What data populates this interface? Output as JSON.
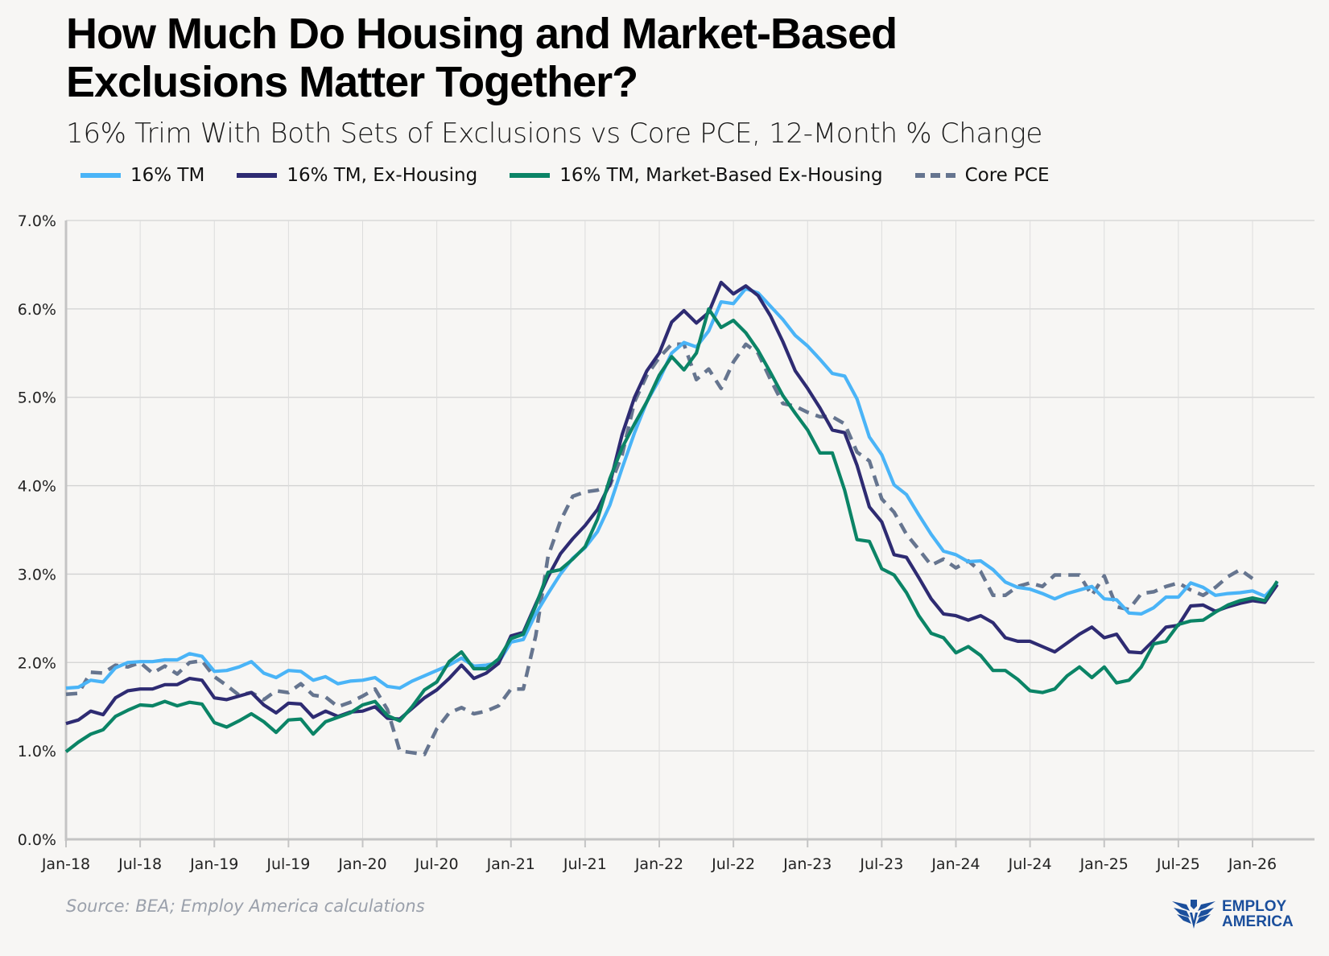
{
  "header": {
    "title_line1": "How Much Do Housing and Market-Based",
    "title_line2": "Exclusions Matter Together?",
    "subtitle": "16% Trim With Both Sets of Exclusions vs Core PCE, 12-Month % Change"
  },
  "footer": {
    "source": "Source: BEA; Employ America calculations",
    "logo_line1": "EMPLOY",
    "logo_line2": "AMERICA",
    "logo_color": "#1b4f9c"
  },
  "chart_data": {
    "type": "line",
    "title": "How Much Do Housing and Market-Based Exclusions Matter Together?",
    "subtitle": "16% Trim With Both Sets of Exclusions vs Core PCE, 12-Month % Change",
    "xlabel": "",
    "ylabel": "",
    "x_start": "2018-01",
    "x_frequency": "monthly",
    "x_ticks": [
      "Jan-18",
      "Jul-18",
      "Jan-19",
      "Jul-19",
      "Jan-20",
      "Jul-20",
      "Jan-21",
      "Jul-21",
      "Jan-22",
      "Jul-22",
      "Jan-23",
      "Jul-23",
      "Jan-24",
      "Jul-24",
      "Jan-25",
      "Jul-25",
      "Jan-26"
    ],
    "x_range_months": [
      0,
      101
    ],
    "y_ticks": [
      "0.0%",
      "1.0%",
      "2.0%",
      "3.0%",
      "4.0%",
      "5.0%",
      "6.0%",
      "7.0%"
    ],
    "ylim": [
      0,
      7
    ],
    "grid": true,
    "legend_position": "top",
    "series": [
      {
        "name": "16% TM",
        "color": "#4ab4f7",
        "dashed": false,
        "values": [
          1.71,
          1.72,
          1.8,
          1.78,
          1.94,
          2.0,
          2.01,
          2.01,
          2.03,
          2.03,
          2.1,
          2.07,
          1.9,
          1.91,
          1.95,
          2.01,
          1.88,
          1.83,
          1.91,
          1.9,
          1.8,
          1.84,
          1.76,
          1.79,
          1.8,
          1.83,
          1.73,
          1.71,
          1.79,
          1.85,
          1.91,
          1.97,
          2.05,
          1.96,
          1.97,
          2.0,
          2.23,
          2.26,
          2.55,
          2.78,
          3.0,
          3.18,
          3.3,
          3.48,
          3.78,
          4.2,
          4.6,
          4.95,
          5.2,
          5.5,
          5.62,
          5.57,
          5.75,
          6.08,
          6.06,
          6.23,
          6.18,
          6.03,
          5.88,
          5.7,
          5.58,
          5.43,
          5.27,
          5.24,
          4.98,
          4.55,
          4.35,
          4.01,
          3.9,
          3.67,
          3.45,
          3.26,
          3.22,
          3.14,
          3.15,
          3.05,
          2.91,
          2.85,
          2.83,
          2.78,
          2.72,
          2.78,
          2.82,
          2.86,
          2.72,
          2.71,
          2.56,
          2.55,
          2.62,
          2.74,
          2.74,
          2.9,
          2.85,
          2.76,
          2.78,
          2.79,
          2.81,
          2.75,
          2.9
        ]
      },
      {
        "name": "16% TM, Ex-Housing",
        "color": "#2e2b72",
        "dashed": false,
        "values": [
          1.31,
          1.35,
          1.45,
          1.41,
          1.6,
          1.68,
          1.7,
          1.7,
          1.75,
          1.75,
          1.82,
          1.8,
          1.6,
          1.58,
          1.62,
          1.66,
          1.52,
          1.43,
          1.54,
          1.53,
          1.38,
          1.45,
          1.39,
          1.44,
          1.45,
          1.5,
          1.37,
          1.36,
          1.48,
          1.6,
          1.69,
          1.82,
          1.97,
          1.82,
          1.88,
          1.99,
          2.3,
          2.34,
          2.66,
          2.97,
          3.23,
          3.4,
          3.55,
          3.73,
          4.02,
          4.58,
          5.0,
          5.3,
          5.5,
          5.85,
          5.98,
          5.84,
          5.96,
          6.3,
          6.17,
          6.26,
          6.15,
          5.92,
          5.63,
          5.3,
          5.1,
          4.88,
          4.63,
          4.6,
          4.23,
          3.76,
          3.59,
          3.22,
          3.19,
          2.96,
          2.72,
          2.55,
          2.53,
          2.48,
          2.53,
          2.45,
          2.28,
          2.24,
          2.24,
          2.18,
          2.12,
          2.22,
          2.32,
          2.4,
          2.28,
          2.32,
          2.12,
          2.11,
          2.25,
          2.4,
          2.42,
          2.64,
          2.65,
          2.58,
          2.63,
          2.67,
          2.7,
          2.68,
          2.88
        ]
      },
      {
        "name": "16% TM, Market-Based Ex-Housing",
        "color": "#0b8466",
        "dashed": false,
        "values": [
          0.99,
          1.1,
          1.19,
          1.24,
          1.39,
          1.46,
          1.52,
          1.51,
          1.56,
          1.51,
          1.55,
          1.53,
          1.32,
          1.27,
          1.34,
          1.42,
          1.33,
          1.21,
          1.35,
          1.36,
          1.19,
          1.33,
          1.38,
          1.43,
          1.52,
          1.56,
          1.4,
          1.34,
          1.5,
          1.69,
          1.78,
          2.01,
          2.12,
          1.93,
          1.93,
          2.04,
          2.27,
          2.32,
          2.64,
          3.02,
          3.05,
          3.17,
          3.31,
          3.62,
          4.08,
          4.43,
          4.7,
          4.95,
          5.25,
          5.46,
          5.31,
          5.5,
          6.0,
          5.79,
          5.87,
          5.73,
          5.53,
          5.28,
          5.02,
          4.82,
          4.63,
          4.37,
          4.37,
          3.95,
          3.39,
          3.37,
          3.06,
          2.99,
          2.79,
          2.53,
          2.33,
          2.28,
          2.11,
          2.18,
          2.08,
          1.91,
          1.91,
          1.81,
          1.68,
          1.66,
          1.7,
          1.85,
          1.95,
          1.83,
          1.95,
          1.77,
          1.8,
          1.95,
          2.21,
          2.24,
          2.43,
          2.47,
          2.48,
          2.57,
          2.65,
          2.7,
          2.73,
          2.7,
          2.92
        ]
      },
      {
        "name": "Core PCE",
        "color": "#66758f",
        "dashed": true,
        "values": [
          1.64,
          1.65,
          1.89,
          1.88,
          1.97,
          1.95,
          2.0,
          1.88,
          1.96,
          1.87,
          2.0,
          2.02,
          1.84,
          1.74,
          1.63,
          1.66,
          1.58,
          1.68,
          1.66,
          1.76,
          1.63,
          1.61,
          1.5,
          1.55,
          1.62,
          1.7,
          1.47,
          1.0,
          0.98,
          0.96,
          1.25,
          1.43,
          1.49,
          1.42,
          1.45,
          1.51,
          1.7,
          1.7,
          2.3,
          3.2,
          3.6,
          3.88,
          3.93,
          3.95,
          4.0,
          4.35,
          4.95,
          5.25,
          5.45,
          5.6,
          5.6,
          5.2,
          5.32,
          5.1,
          5.4,
          5.6,
          5.5,
          5.2,
          4.93,
          4.9,
          4.83,
          4.78,
          4.78,
          4.7,
          4.38,
          4.28,
          3.85,
          3.7,
          3.45,
          3.28,
          3.1,
          3.17,
          3.07,
          3.15,
          3.03,
          2.76,
          2.76,
          2.86,
          2.9,
          2.86,
          2.99,
          2.99,
          2.99,
          2.76,
          2.98,
          2.63,
          2.6,
          2.78,
          2.8,
          2.86,
          2.9,
          2.82,
          2.76,
          2.85,
          2.97,
          3.05,
          2.95,
          null,
          null
        ]
      }
    ]
  }
}
